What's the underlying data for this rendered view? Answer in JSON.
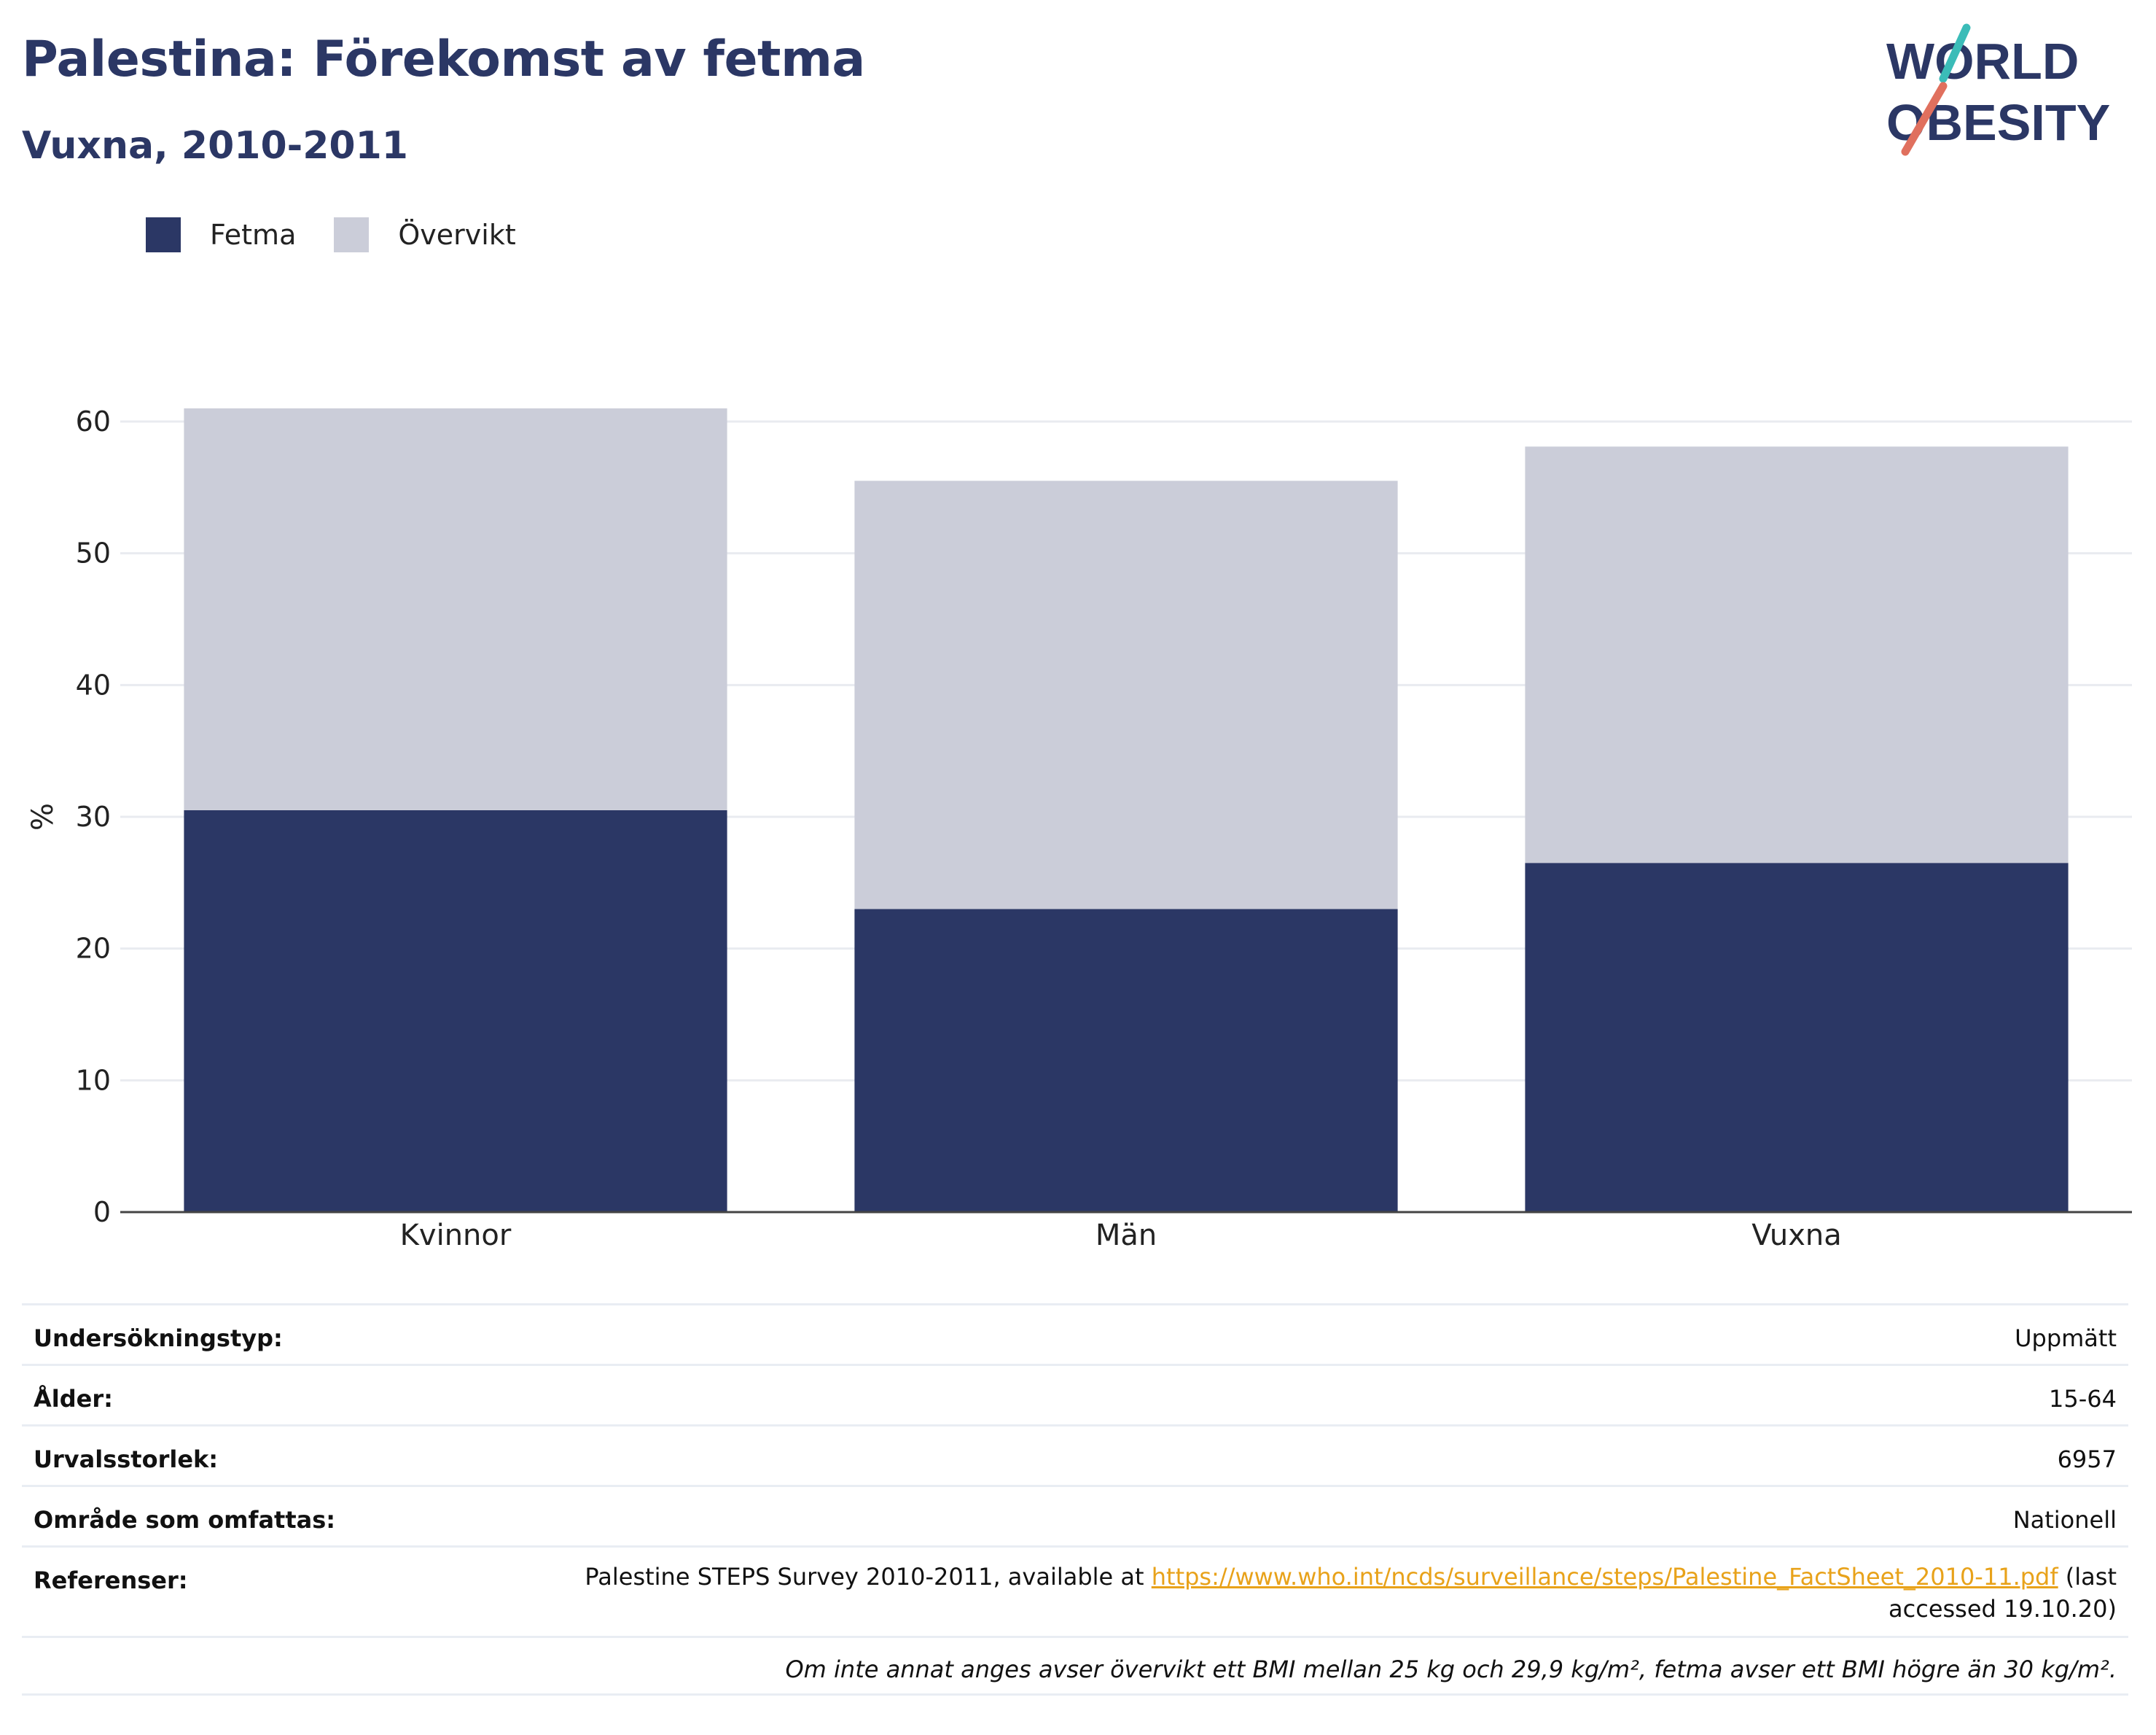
{
  "header": {
    "title": "Palestina: Förekomst av fetma",
    "subtitle": "Vuxna, 2010-2011",
    "logo_line1": "WORLD",
    "logo_line2": "OBESITY"
  },
  "legend": [
    {
      "label": "Fetma",
      "color": "#2b3765"
    },
    {
      "label": "Övervikt",
      "color": "#cbcdd9"
    }
  ],
  "chart_data": {
    "type": "bar",
    "stacked": true,
    "categories": [
      "Kvinnor",
      "Män",
      "Vuxna"
    ],
    "series": [
      {
        "name": "Fetma",
        "color": "#2b3765",
        "values": [
          30.5,
          23.0,
          26.5
        ]
      },
      {
        "name": "Övervikt",
        "color": "#cbcdd9",
        "values": [
          30.5,
          32.5,
          31.6
        ]
      }
    ],
    "ylabel": "%",
    "xlabel": "",
    "ylim": [
      0,
      60
    ],
    "yticks": [
      0,
      10,
      20,
      30,
      40,
      50,
      60
    ],
    "grid": true,
    "legend_position": "top-left"
  },
  "info": {
    "survey_type_label": "Undersökningstyp:",
    "survey_type_value": "Uppmätt",
    "age_label": "Ålder:",
    "age_value": "15-64",
    "sample_label": "Urvalsstorlek:",
    "sample_value": "6957",
    "area_label": "Område som omfattas:",
    "area_value": "Nationell",
    "refs_label": "Referenser:",
    "refs_prefix": "Palestine STEPS Survey 2010-2011, available at ",
    "refs_link": "https://www.who.int/ncds/surveillance/steps/Palestine_FactSheet_2010-11.pdf",
    "refs_suffix": " (last accessed 19.10.20)",
    "note": "Om inte annat anges avser övervikt ett BMI mellan 25 kg och 29,9 kg/m², fetma avser ett BMI högre än 30 kg/m²."
  }
}
